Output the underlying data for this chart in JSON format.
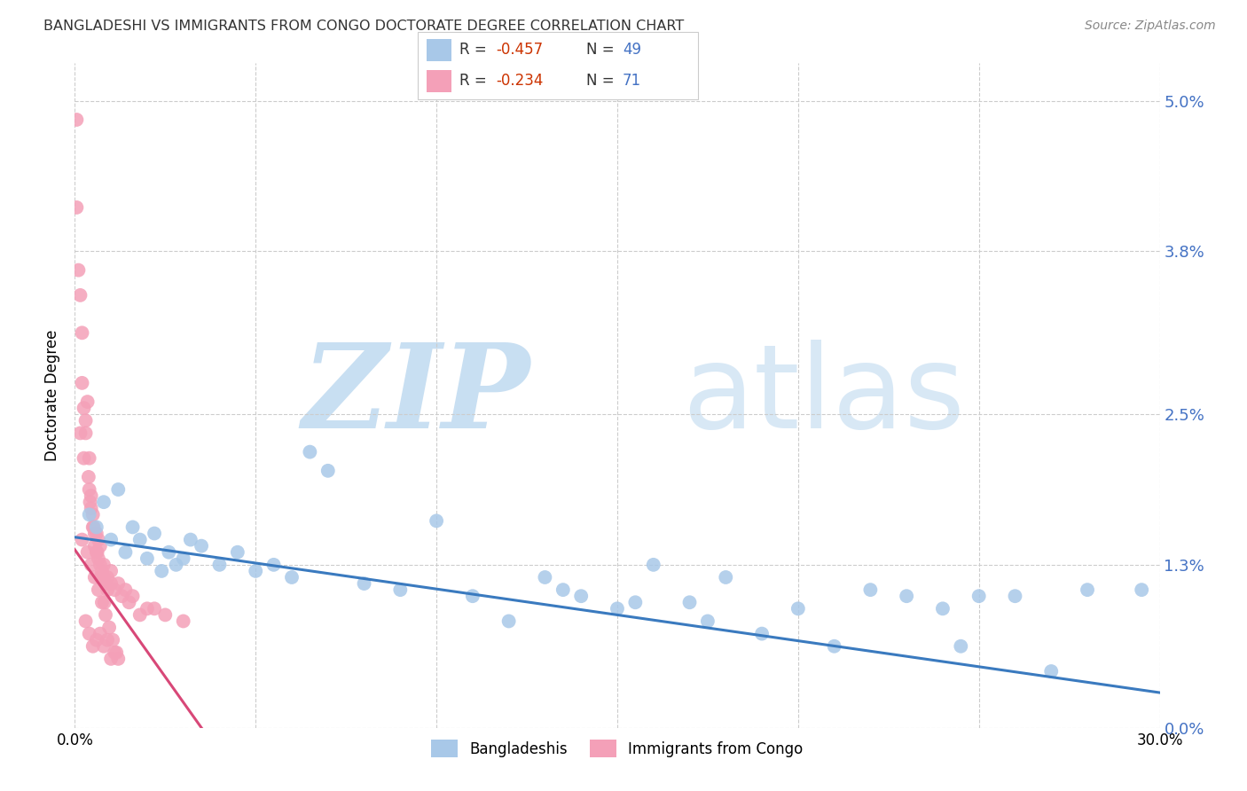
{
  "title": "BANGLADESHI VS IMMIGRANTS FROM CONGO DOCTORATE DEGREE CORRELATION CHART",
  "source": "Source: ZipAtlas.com",
  "ylabel": "Doctorate Degree",
  "ytick_values": [
    0.0,
    1.3,
    2.5,
    3.8,
    5.0
  ],
  "xlim": [
    0.0,
    30.0
  ],
  "ylim": [
    0.0,
    5.3
  ],
  "legend_label_blue": "Bangladeshis",
  "legend_label_pink": "Immigrants from Congo",
  "blue_color": "#a8c8e8",
  "pink_color": "#f4a0b8",
  "trendline_blue": "#3a7abf",
  "trendline_pink": "#d84878",
  "blue_R": -0.457,
  "blue_N": 49,
  "pink_R": -0.234,
  "pink_N": 71,
  "blue_trend_x0": 0.0,
  "blue_trend_y0": 1.52,
  "blue_trend_x1": 30.0,
  "blue_trend_y1": 0.28,
  "pink_trend_x0": 0.0,
  "pink_trend_y0": 1.42,
  "pink_trend_x1": 3.5,
  "pink_trend_y1": 0.0,
  "blue_scatter_x": [
    0.4,
    0.6,
    0.8,
    1.0,
    1.2,
    1.4,
    1.6,
    1.8,
    2.0,
    2.2,
    2.4,
    2.6,
    2.8,
    3.0,
    3.2,
    3.5,
    4.0,
    4.5,
    5.0,
    5.5,
    6.0,
    6.5,
    7.0,
    8.0,
    9.0,
    10.0,
    11.0,
    12.0,
    13.0,
    13.5,
    14.0,
    15.0,
    15.5,
    16.0,
    17.0,
    17.5,
    18.0,
    19.0,
    20.0,
    21.0,
    22.0,
    23.0,
    24.0,
    24.5,
    25.0,
    26.0,
    27.0,
    28.0,
    29.5
  ],
  "blue_scatter_y": [
    1.7,
    1.6,
    1.8,
    1.5,
    1.9,
    1.4,
    1.6,
    1.5,
    1.35,
    1.55,
    1.25,
    1.4,
    1.3,
    1.35,
    1.5,
    1.45,
    1.3,
    1.4,
    1.25,
    1.3,
    1.2,
    2.2,
    2.05,
    1.15,
    1.1,
    1.65,
    1.05,
    0.85,
    1.2,
    1.1,
    1.05,
    0.95,
    1.0,
    1.3,
    1.0,
    0.85,
    1.2,
    0.75,
    0.95,
    0.65,
    1.1,
    1.05,
    0.95,
    0.65,
    1.05,
    1.05,
    0.45,
    1.1,
    1.1
  ],
  "pink_scatter_x": [
    0.05,
    0.05,
    0.1,
    0.15,
    0.2,
    0.2,
    0.25,
    0.3,
    0.3,
    0.35,
    0.4,
    0.4,
    0.45,
    0.45,
    0.5,
    0.5,
    0.55,
    0.55,
    0.6,
    0.6,
    0.65,
    0.65,
    0.7,
    0.7,
    0.75,
    0.8,
    0.8,
    0.85,
    0.9,
    0.9,
    1.0,
    1.0,
    1.1,
    1.2,
    1.3,
    1.4,
    1.5,
    1.6,
    1.8,
    2.0,
    2.2,
    2.5,
    3.0,
    0.3,
    0.4,
    0.5,
    0.6,
    0.7,
    0.8,
    0.9,
    1.0,
    1.1,
    1.2,
    0.2,
    0.35,
    0.45,
    0.55,
    0.65,
    0.75,
    0.85,
    0.95,
    1.05,
    1.15,
    0.15,
    0.25,
    0.38,
    0.42,
    0.52,
    0.62,
    0.72,
    0.82
  ],
  "pink_scatter_y": [
    4.85,
    4.15,
    3.65,
    3.45,
    3.15,
    2.75,
    2.55,
    2.45,
    2.35,
    2.6,
    2.15,
    1.9,
    1.85,
    1.75,
    1.7,
    1.6,
    1.55,
    1.45,
    1.4,
    1.55,
    1.35,
    1.5,
    1.3,
    1.45,
    1.25,
    1.3,
    1.2,
    1.15,
    1.2,
    1.1,
    1.25,
    1.15,
    1.1,
    1.15,
    1.05,
    1.1,
    1.0,
    1.05,
    0.9,
    0.95,
    0.95,
    0.9,
    0.85,
    0.85,
    0.75,
    0.65,
    0.7,
    0.75,
    0.65,
    0.7,
    0.55,
    0.6,
    0.55,
    1.5,
    1.4,
    1.3,
    1.2,
    1.1,
    1.0,
    0.9,
    0.8,
    0.7,
    0.6,
    2.35,
    2.15,
    2.0,
    1.8,
    1.6,
    1.4,
    1.2,
    1.0
  ]
}
